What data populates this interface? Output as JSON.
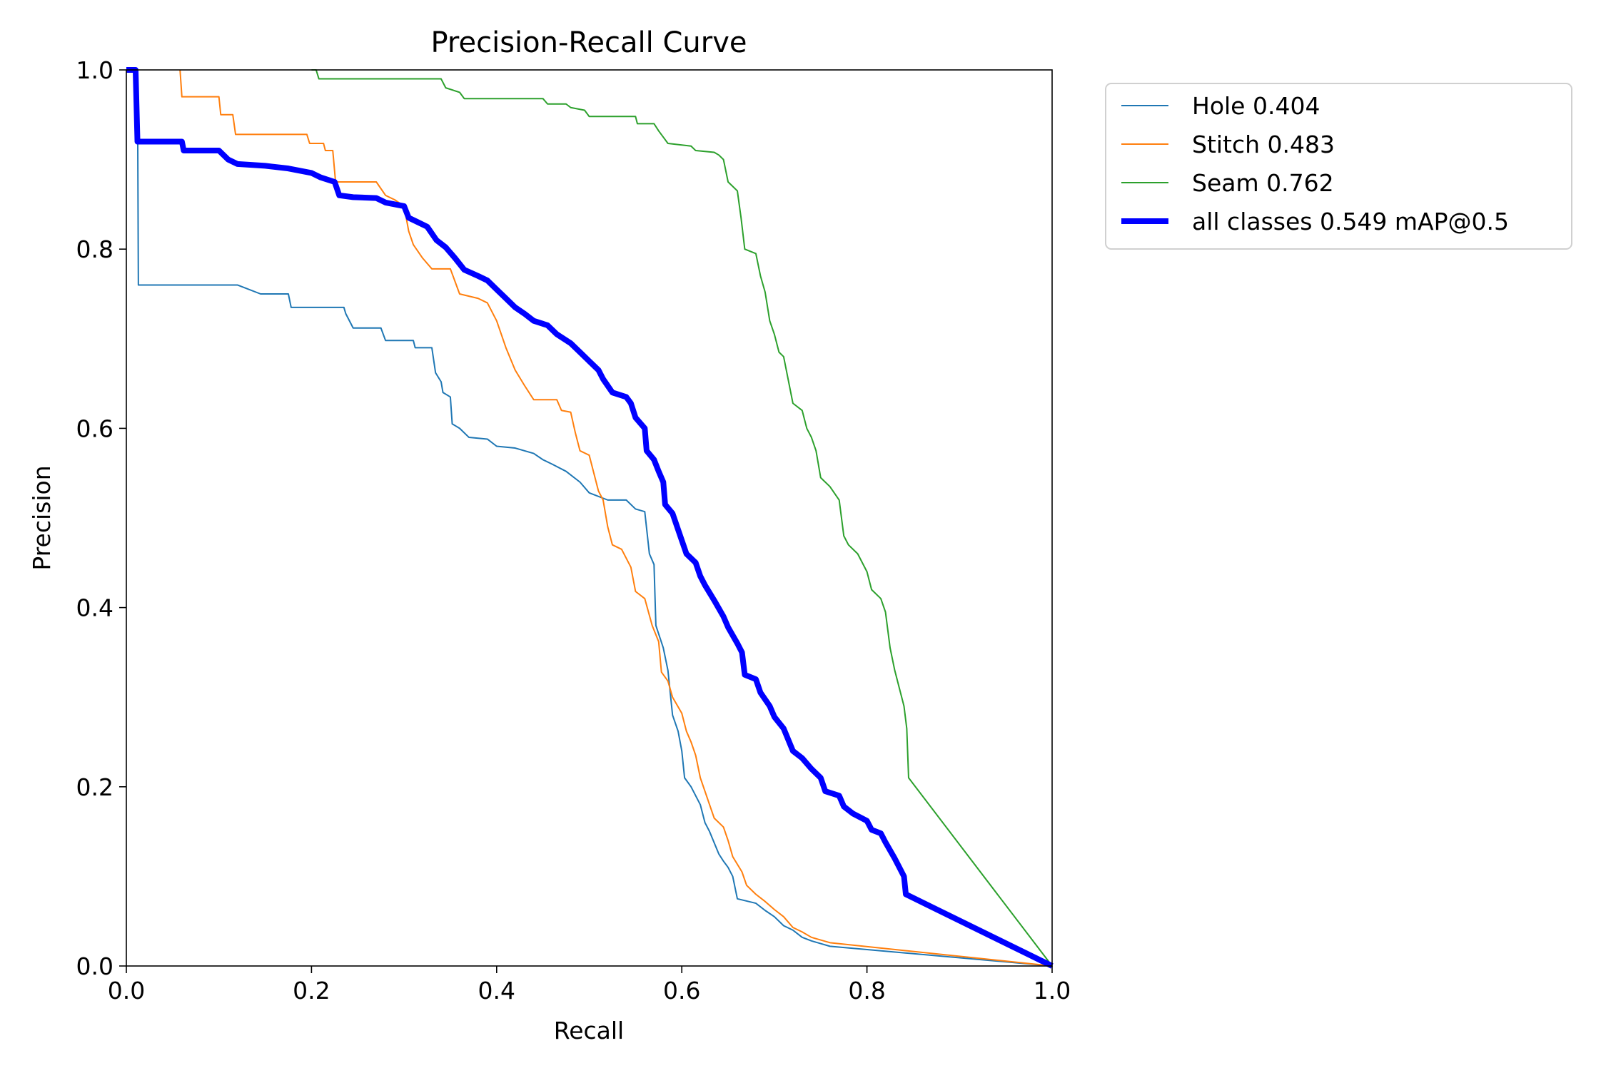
{
  "chart_data": {
    "type": "line",
    "title": "Precision-Recall Curve",
    "xlabel": "Recall",
    "ylabel": "Precision",
    "xlim": [
      0,
      1
    ],
    "ylim": [
      0,
      1
    ],
    "xticks": [
      "0.0",
      "0.2",
      "0.4",
      "0.6",
      "0.8",
      "1.0"
    ],
    "yticks": [
      "0.0",
      "0.2",
      "0.4",
      "0.6",
      "0.8",
      "1.0"
    ],
    "grid": false,
    "legend_position": "outside-top-right",
    "series": [
      {
        "name": "Hole 0.404",
        "color": "#1f77b4",
        "thick": false,
        "points": [
          [
            0.0,
            1.0
          ],
          [
            0.012,
            1.0
          ],
          [
            0.013,
            0.76
          ],
          [
            0.06,
            0.76
          ],
          [
            0.12,
            0.76
          ],
          [
            0.125,
            0.758
          ],
          [
            0.145,
            0.75
          ],
          [
            0.175,
            0.75
          ],
          [
            0.178,
            0.735
          ],
          [
            0.235,
            0.735
          ],
          [
            0.237,
            0.728
          ],
          [
            0.245,
            0.712
          ],
          [
            0.275,
            0.712
          ],
          [
            0.28,
            0.698
          ],
          [
            0.31,
            0.698
          ],
          [
            0.312,
            0.69
          ],
          [
            0.33,
            0.69
          ],
          [
            0.334,
            0.662
          ],
          [
            0.34,
            0.652
          ],
          [
            0.342,
            0.64
          ],
          [
            0.35,
            0.635
          ],
          [
            0.352,
            0.605
          ],
          [
            0.36,
            0.6
          ],
          [
            0.37,
            0.59
          ],
          [
            0.39,
            0.588
          ],
          [
            0.4,
            0.58
          ],
          [
            0.42,
            0.578
          ],
          [
            0.44,
            0.572
          ],
          [
            0.45,
            0.565
          ],
          [
            0.46,
            0.56
          ],
          [
            0.475,
            0.552
          ],
          [
            0.49,
            0.54
          ],
          [
            0.5,
            0.528
          ],
          [
            0.52,
            0.52
          ],
          [
            0.54,
            0.52
          ],
          [
            0.55,
            0.51
          ],
          [
            0.56,
            0.507
          ],
          [
            0.565,
            0.46
          ],
          [
            0.57,
            0.448
          ],
          [
            0.572,
            0.38
          ],
          [
            0.58,
            0.355
          ],
          [
            0.585,
            0.33
          ],
          [
            0.59,
            0.28
          ],
          [
            0.596,
            0.262
          ],
          [
            0.6,
            0.24
          ],
          [
            0.603,
            0.21
          ],
          [
            0.61,
            0.2
          ],
          [
            0.62,
            0.18
          ],
          [
            0.625,
            0.16
          ],
          [
            0.63,
            0.15
          ],
          [
            0.64,
            0.125
          ],
          [
            0.645,
            0.117
          ],
          [
            0.65,
            0.11
          ],
          [
            0.655,
            0.1
          ],
          [
            0.66,
            0.075
          ],
          [
            0.68,
            0.07
          ],
          [
            0.69,
            0.062
          ],
          [
            0.7,
            0.055
          ],
          [
            0.71,
            0.045
          ],
          [
            0.72,
            0.04
          ],
          [
            0.73,
            0.032
          ],
          [
            0.74,
            0.028
          ],
          [
            0.76,
            0.022
          ],
          [
            1.0,
            0.0
          ]
        ]
      },
      {
        "name": "Stitch 0.483",
        "color": "#ff7f0e",
        "thick": false,
        "points": [
          [
            0.058,
            1.0
          ],
          [
            0.06,
            0.97
          ],
          [
            0.1,
            0.97
          ],
          [
            0.102,
            0.95
          ],
          [
            0.115,
            0.95
          ],
          [
            0.118,
            0.928
          ],
          [
            0.195,
            0.928
          ],
          [
            0.198,
            0.918
          ],
          [
            0.213,
            0.918
          ],
          [
            0.215,
            0.91
          ],
          [
            0.223,
            0.91
          ],
          [
            0.226,
            0.875
          ],
          [
            0.27,
            0.875
          ],
          [
            0.28,
            0.86
          ],
          [
            0.29,
            0.855
          ],
          [
            0.3,
            0.848
          ],
          [
            0.305,
            0.82
          ],
          [
            0.31,
            0.805
          ],
          [
            0.32,
            0.79
          ],
          [
            0.33,
            0.778
          ],
          [
            0.35,
            0.778
          ],
          [
            0.36,
            0.75
          ],
          [
            0.38,
            0.745
          ],
          [
            0.39,
            0.74
          ],
          [
            0.4,
            0.72
          ],
          [
            0.41,
            0.69
          ],
          [
            0.42,
            0.665
          ],
          [
            0.43,
            0.648
          ],
          [
            0.44,
            0.632
          ],
          [
            0.465,
            0.632
          ],
          [
            0.47,
            0.62
          ],
          [
            0.48,
            0.618
          ],
          [
            0.485,
            0.595
          ],
          [
            0.49,
            0.575
          ],
          [
            0.5,
            0.57
          ],
          [
            0.505,
            0.55
          ],
          [
            0.51,
            0.53
          ],
          [
            0.515,
            0.52
          ],
          [
            0.52,
            0.49
          ],
          [
            0.525,
            0.47
          ],
          [
            0.535,
            0.465
          ],
          [
            0.545,
            0.445
          ],
          [
            0.55,
            0.418
          ],
          [
            0.56,
            0.41
          ],
          [
            0.568,
            0.38
          ],
          [
            0.575,
            0.362
          ],
          [
            0.578,
            0.328
          ],
          [
            0.585,
            0.318
          ],
          [
            0.59,
            0.3
          ],
          [
            0.6,
            0.282
          ],
          [
            0.605,
            0.262
          ],
          [
            0.61,
            0.25
          ],
          [
            0.615,
            0.235
          ],
          [
            0.62,
            0.21
          ],
          [
            0.625,
            0.195
          ],
          [
            0.63,
            0.18
          ],
          [
            0.635,
            0.165
          ],
          [
            0.645,
            0.155
          ],
          [
            0.65,
            0.14
          ],
          [
            0.655,
            0.122
          ],
          [
            0.665,
            0.105
          ],
          [
            0.67,
            0.09
          ],
          [
            0.68,
            0.08
          ],
          [
            0.69,
            0.072
          ],
          [
            0.7,
            0.063
          ],
          [
            0.71,
            0.055
          ],
          [
            0.72,
            0.043
          ],
          [
            0.73,
            0.038
          ],
          [
            0.74,
            0.032
          ],
          [
            0.76,
            0.026
          ],
          [
            1.0,
            0.0
          ]
        ]
      },
      {
        "name": "Seam 0.762",
        "color": "#2ca02c",
        "thick": false,
        "points": [
          [
            0.2,
            1.0
          ],
          [
            0.205,
            1.0
          ],
          [
            0.208,
            0.99
          ],
          [
            0.34,
            0.99
          ],
          [
            0.345,
            0.98
          ],
          [
            0.36,
            0.975
          ],
          [
            0.365,
            0.968
          ],
          [
            0.45,
            0.968
          ],
          [
            0.455,
            0.962
          ],
          [
            0.475,
            0.962
          ],
          [
            0.48,
            0.958
          ],
          [
            0.495,
            0.955
          ],
          [
            0.5,
            0.948
          ],
          [
            0.55,
            0.948
          ],
          [
            0.552,
            0.94
          ],
          [
            0.57,
            0.94
          ],
          [
            0.575,
            0.932
          ],
          [
            0.58,
            0.925
          ],
          [
            0.585,
            0.918
          ],
          [
            0.61,
            0.915
          ],
          [
            0.615,
            0.91
          ],
          [
            0.635,
            0.908
          ],
          [
            0.64,
            0.905
          ],
          [
            0.645,
            0.9
          ],
          [
            0.65,
            0.875
          ],
          [
            0.655,
            0.87
          ],
          [
            0.66,
            0.865
          ],
          [
            0.664,
            0.835
          ],
          [
            0.668,
            0.8
          ],
          [
            0.68,
            0.795
          ],
          [
            0.685,
            0.77
          ],
          [
            0.69,
            0.752
          ],
          [
            0.695,
            0.72
          ],
          [
            0.7,
            0.705
          ],
          [
            0.705,
            0.685
          ],
          [
            0.71,
            0.68
          ],
          [
            0.72,
            0.628
          ],
          [
            0.73,
            0.62
          ],
          [
            0.735,
            0.6
          ],
          [
            0.74,
            0.59
          ],
          [
            0.745,
            0.575
          ],
          [
            0.75,
            0.545
          ],
          [
            0.76,
            0.535
          ],
          [
            0.77,
            0.52
          ],
          [
            0.775,
            0.48
          ],
          [
            0.78,
            0.47
          ],
          [
            0.79,
            0.46
          ],
          [
            0.8,
            0.44
          ],
          [
            0.805,
            0.42
          ],
          [
            0.815,
            0.41
          ],
          [
            0.82,
            0.395
          ],
          [
            0.825,
            0.355
          ],
          [
            0.83,
            0.33
          ],
          [
            0.835,
            0.31
          ],
          [
            0.84,
            0.29
          ],
          [
            0.843,
            0.265
          ],
          [
            0.845,
            0.21
          ],
          [
            1.0,
            0.0
          ]
        ]
      },
      {
        "name": "all classes 0.549 mAP@0.5",
        "color": "#0000ff",
        "thick": true,
        "points": [
          [
            0.0,
            1.0
          ],
          [
            0.01,
            1.0
          ],
          [
            0.012,
            0.92
          ],
          [
            0.06,
            0.92
          ],
          [
            0.062,
            0.91
          ],
          [
            0.1,
            0.91
          ],
          [
            0.11,
            0.9
          ],
          [
            0.12,
            0.895
          ],
          [
            0.15,
            0.893
          ],
          [
            0.175,
            0.89
          ],
          [
            0.2,
            0.885
          ],
          [
            0.21,
            0.88
          ],
          [
            0.225,
            0.875
          ],
          [
            0.23,
            0.86
          ],
          [
            0.245,
            0.858
          ],
          [
            0.27,
            0.857
          ],
          [
            0.28,
            0.852
          ],
          [
            0.3,
            0.848
          ],
          [
            0.305,
            0.835
          ],
          [
            0.315,
            0.83
          ],
          [
            0.325,
            0.825
          ],
          [
            0.335,
            0.81
          ],
          [
            0.345,
            0.802
          ],
          [
            0.355,
            0.79
          ],
          [
            0.365,
            0.777
          ],
          [
            0.38,
            0.77
          ],
          [
            0.39,
            0.765
          ],
          [
            0.4,
            0.755
          ],
          [
            0.41,
            0.745
          ],
          [
            0.42,
            0.735
          ],
          [
            0.43,
            0.728
          ],
          [
            0.44,
            0.72
          ],
          [
            0.455,
            0.715
          ],
          [
            0.465,
            0.705
          ],
          [
            0.48,
            0.695
          ],
          [
            0.49,
            0.685
          ],
          [
            0.5,
            0.675
          ],
          [
            0.51,
            0.665
          ],
          [
            0.515,
            0.655
          ],
          [
            0.525,
            0.64
          ],
          [
            0.54,
            0.635
          ],
          [
            0.545,
            0.628
          ],
          [
            0.55,
            0.612
          ],
          [
            0.56,
            0.6
          ],
          [
            0.562,
            0.575
          ],
          [
            0.57,
            0.565
          ],
          [
            0.575,
            0.552
          ],
          [
            0.58,
            0.54
          ],
          [
            0.582,
            0.515
          ],
          [
            0.59,
            0.505
          ],
          [
            0.595,
            0.49
          ],
          [
            0.6,
            0.475
          ],
          [
            0.605,
            0.46
          ],
          [
            0.615,
            0.45
          ],
          [
            0.62,
            0.435
          ],
          [
            0.625,
            0.425
          ],
          [
            0.635,
            0.408
          ],
          [
            0.645,
            0.39
          ],
          [
            0.65,
            0.378
          ],
          [
            0.66,
            0.36
          ],
          [
            0.665,
            0.35
          ],
          [
            0.668,
            0.325
          ],
          [
            0.68,
            0.32
          ],
          [
            0.685,
            0.305
          ],
          [
            0.695,
            0.29
          ],
          [
            0.7,
            0.278
          ],
          [
            0.71,
            0.265
          ],
          [
            0.72,
            0.24
          ],
          [
            0.73,
            0.232
          ],
          [
            0.74,
            0.22
          ],
          [
            0.75,
            0.21
          ],
          [
            0.755,
            0.195
          ],
          [
            0.77,
            0.19
          ],
          [
            0.775,
            0.178
          ],
          [
            0.785,
            0.17
          ],
          [
            0.8,
            0.162
          ],
          [
            0.805,
            0.152
          ],
          [
            0.815,
            0.148
          ],
          [
            0.82,
            0.138
          ],
          [
            0.83,
            0.12
          ],
          [
            0.835,
            0.11
          ],
          [
            0.84,
            0.1
          ],
          [
            0.842,
            0.08
          ],
          [
            1.0,
            0.0
          ]
        ]
      }
    ]
  }
}
